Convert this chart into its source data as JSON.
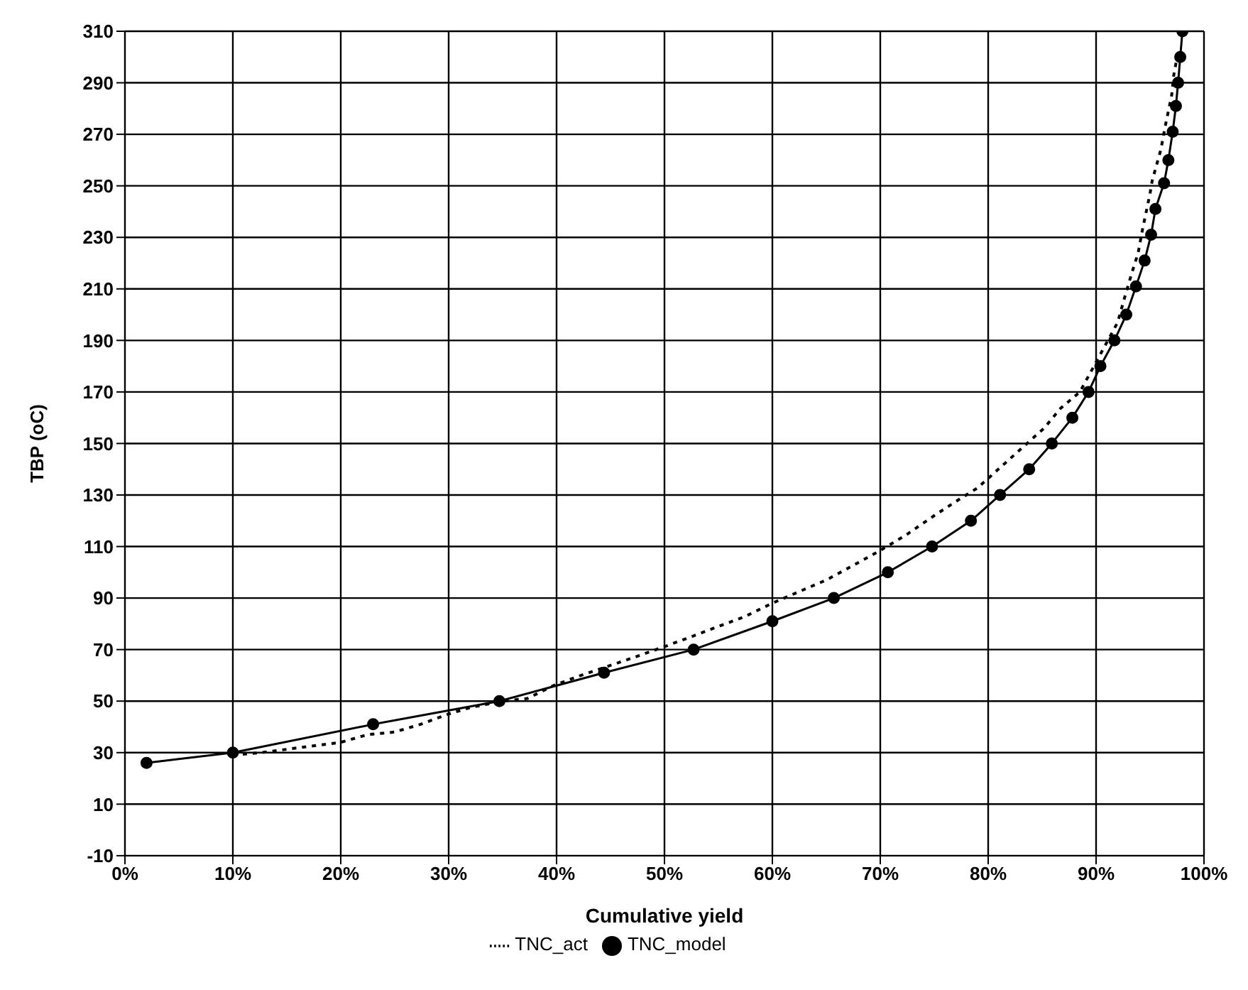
{
  "chart_data": {
    "type": "line",
    "xlabel": "Cumulative yield",
    "ylabel": "TBP (oC)",
    "xlim": [
      0,
      100
    ],
    "xticks": [
      {
        "value": 0,
        "label": "0%"
      },
      {
        "value": 10,
        "label": "10%"
      },
      {
        "value": 20,
        "label": "20%"
      },
      {
        "value": 30,
        "label": "30%"
      },
      {
        "value": 40,
        "label": "40%"
      },
      {
        "value": 50,
        "label": "50%"
      },
      {
        "value": 60,
        "label": "60%"
      },
      {
        "value": 70,
        "label": "70%"
      },
      {
        "value": 80,
        "label": "80%"
      },
      {
        "value": 90,
        "label": "90%"
      },
      {
        "value": 100,
        "label": "100%"
      }
    ],
    "ylim": [
      -10,
      310
    ],
    "yticks": [
      -10,
      10,
      30,
      50,
      70,
      90,
      110,
      130,
      150,
      170,
      190,
      210,
      230,
      250,
      270,
      290,
      310
    ],
    "grid": true,
    "legend": "bottom",
    "series": [
      {
        "name": "TNC_act",
        "color": "#000000",
        "line_style": "dotted",
        "marker": "none",
        "x": [
          10,
          12.6,
          20,
          22.5,
          25,
          27.4,
          30,
          32,
          35,
          37.3,
          39.7,
          42,
          44.8,
          47.2,
          49.9,
          52.5,
          55,
          57.4,
          60,
          62.2,
          65,
          67.2,
          69.8,
          72.4,
          75,
          77.2,
          79,
          81.9,
          83.6,
          85.2,
          86.7,
          88.5,
          92,
          92.6,
          93.3,
          93.9,
          94.3,
          95,
          95.2,
          96,
          96.4,
          97,
          97.2,
          97.6
        ],
        "values": [
          29,
          30,
          34,
          37,
          38,
          41,
          45,
          47.5,
          50,
          51,
          56,
          59.6,
          63.6,
          67,
          71,
          75,
          79,
          82.7,
          88,
          92,
          97,
          102,
          108,
          114.5,
          122,
          128,
          132.7,
          143.6,
          150,
          156,
          163.6,
          170,
          197,
          206,
          216,
          224,
          233,
          247,
          252,
          264,
          273,
          285,
          293,
          302
        ]
      },
      {
        "name": "TNC_model",
        "color": "#000000",
        "line_style": "solid",
        "marker": "circle",
        "x": [
          2,
          10,
          23,
          34.7,
          44.4,
          52.7,
          60,
          65.7,
          70.7,
          74.8,
          78.4,
          81.1,
          83.8,
          85.9,
          87.8,
          89.3,
          90.4,
          91.7,
          92.8,
          93.7,
          94.5,
          95.1,
          95.5,
          96.3,
          96.7,
          97.1,
          97.4,
          97.6,
          97.8,
          98
        ],
        "values": [
          26,
          30,
          41,
          50,
          61,
          70,
          81,
          90,
          100,
          110,
          120,
          130,
          140,
          150,
          160,
          170,
          180,
          190,
          200,
          211,
          221,
          231,
          241,
          251,
          260,
          271,
          281,
          290,
          300,
          310
        ]
      }
    ]
  }
}
